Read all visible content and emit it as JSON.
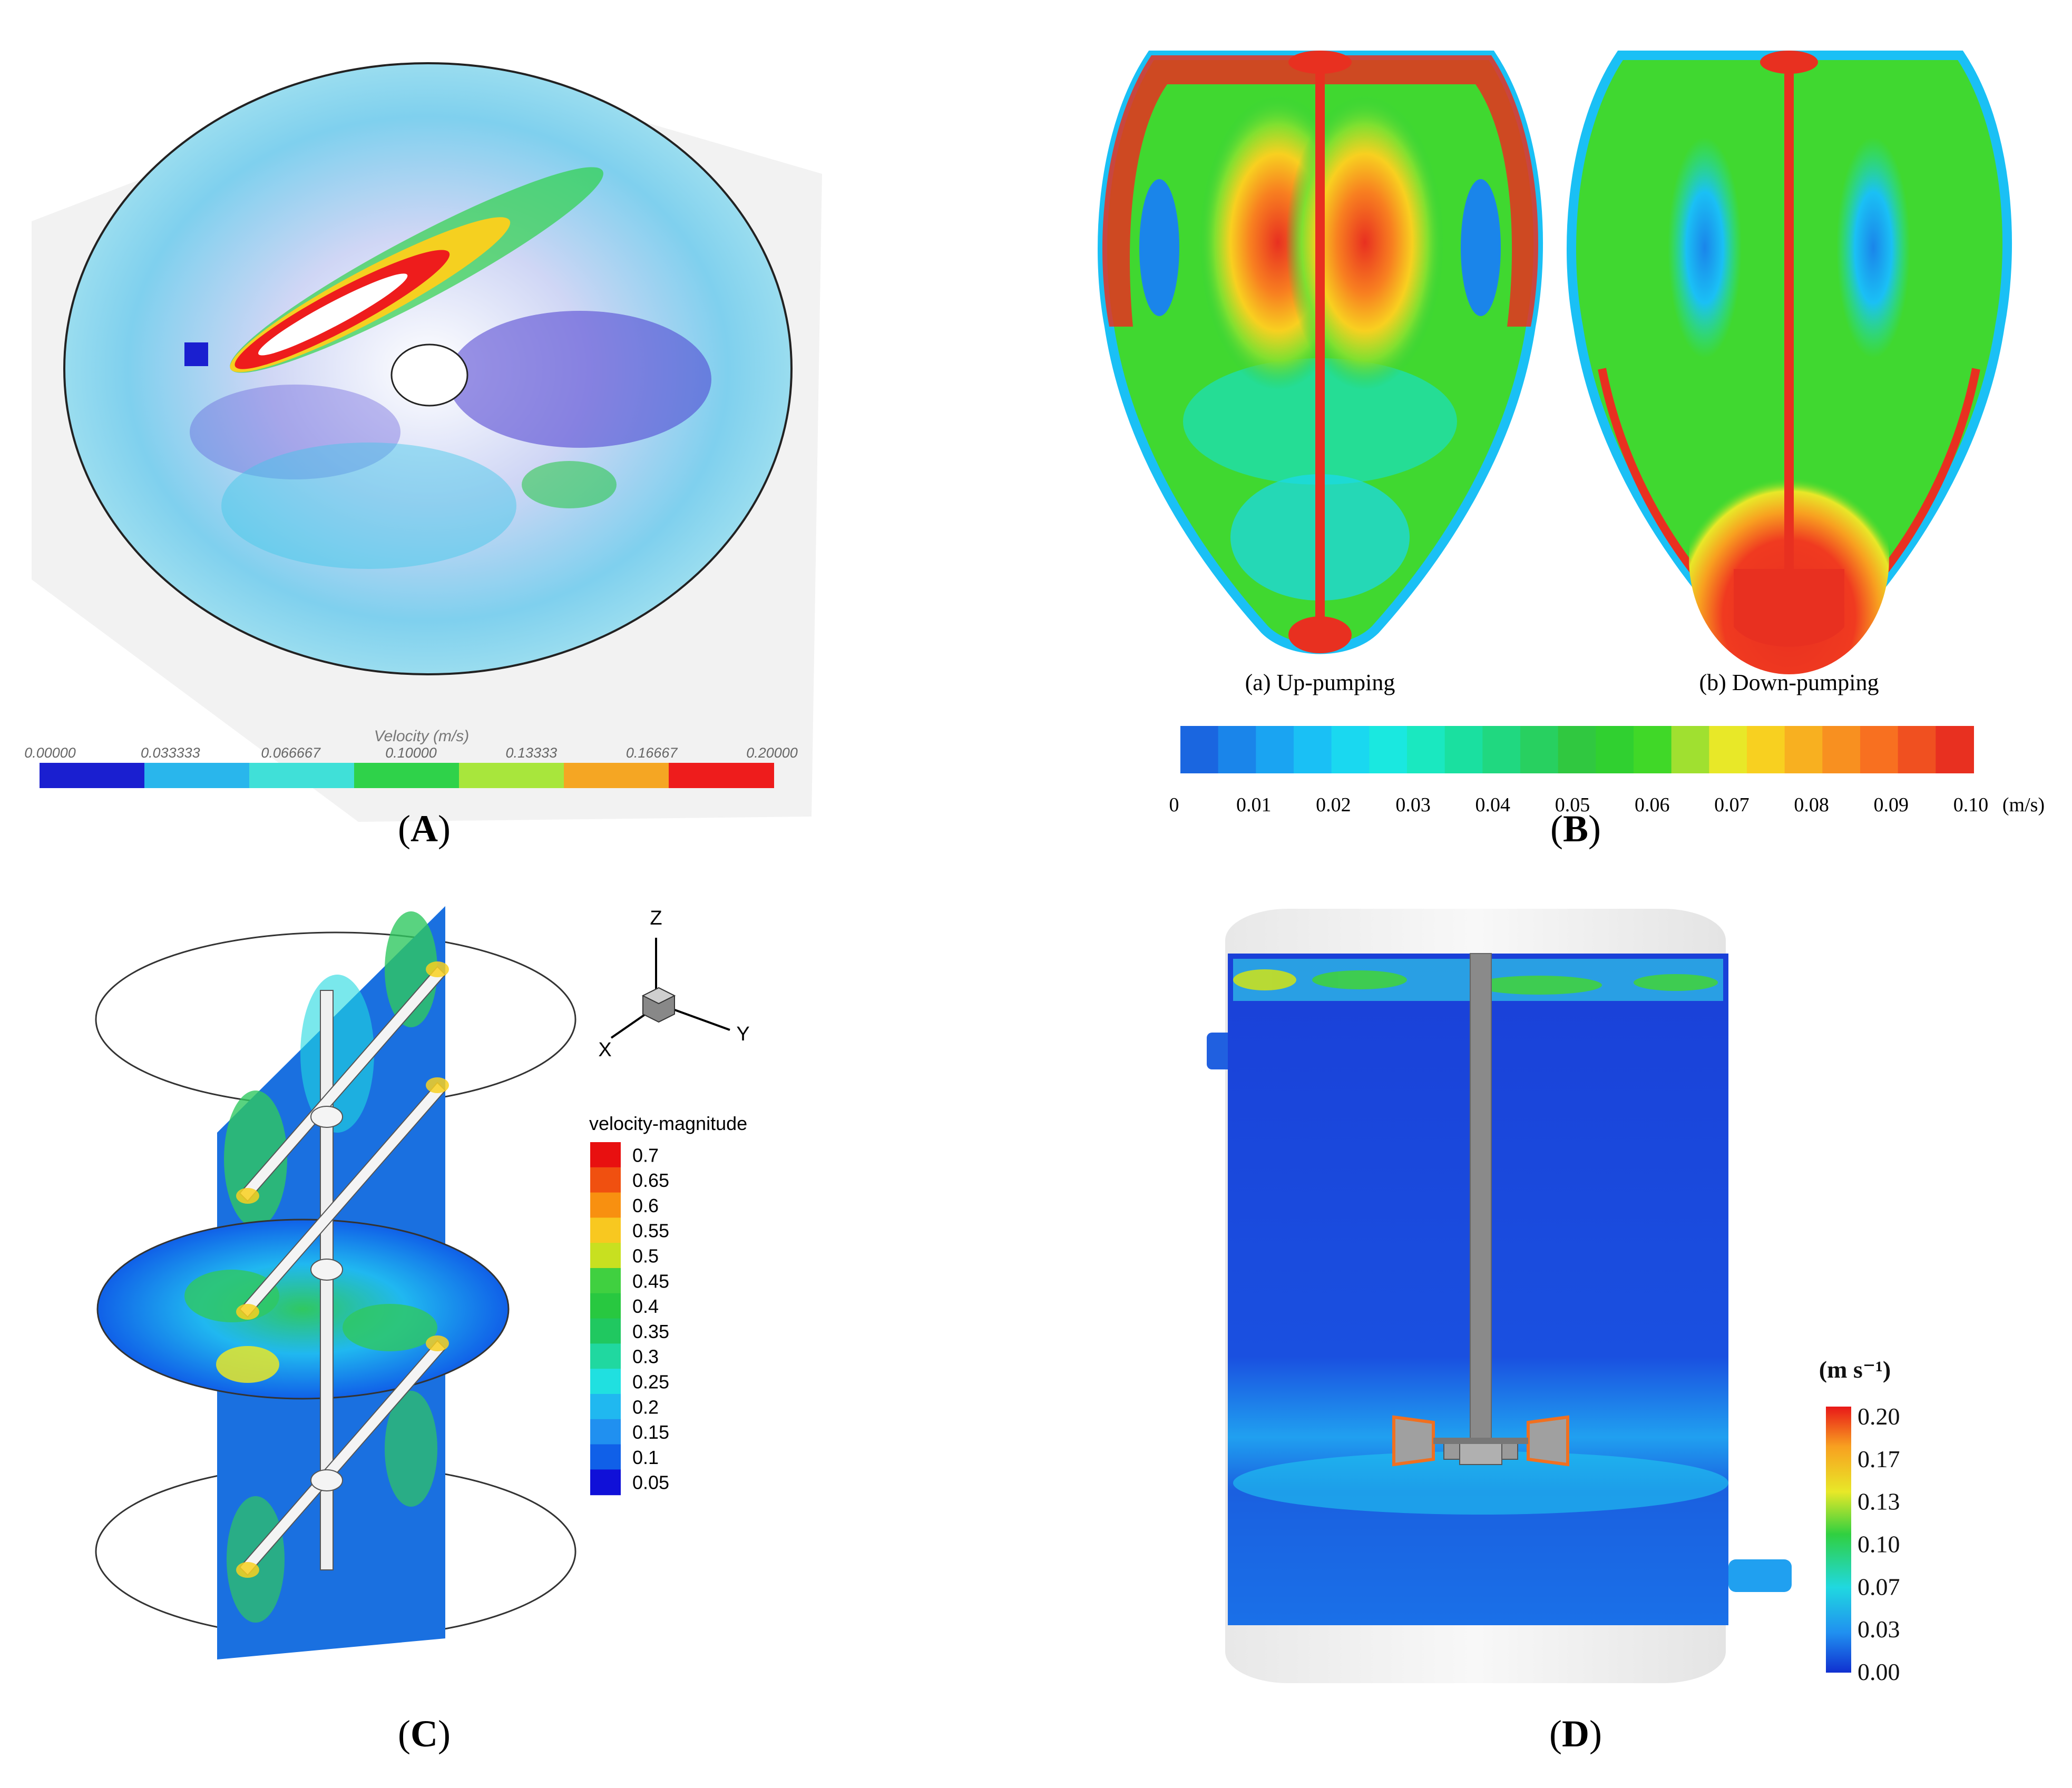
{
  "panels": {
    "A": {
      "label": "(A)",
      "label_letter": "A",
      "colorbar_title": "Velocity (m/s)",
      "ticks": [
        "0.00000",
        "0.033333",
        "0.066667",
        "0.10000",
        "0.13333",
        "0.16667",
        "0.20000"
      ],
      "colors": [
        "#1a1fd0",
        "#29b6ec",
        "#40e0d8",
        "#2fd24a",
        "#a8e63c",
        "#f5a623",
        "#ee1c1c"
      ]
    },
    "B": {
      "label": "(B)",
      "label_letter": "B",
      "caption_a": "(a) Up-pumping",
      "caption_b": "(b) Down-pumping",
      "ticks": [
        "0",
        "0.01",
        "0.02",
        "0.03",
        "0.04",
        "0.05",
        "0.06",
        "0.07",
        "0.08",
        "0.09",
        "0.10"
      ],
      "unit": "(m/s)",
      "colors": [
        "#1a66e0",
        "#1a85ea",
        "#1aa4f2",
        "#1ac0f5",
        "#1ad8f0",
        "#1ae8e0",
        "#1ae8c0",
        "#1ae0a0",
        "#20d880",
        "#28d060",
        "#30c840",
        "#30d030",
        "#40d828",
        "#a0e030",
        "#e8e828",
        "#f8d020",
        "#f8b020",
        "#f89020",
        "#f87020",
        "#f05020",
        "#e83020"
      ]
    },
    "C": {
      "label": "(C)",
      "label_letter": "C",
      "legend_title": "velocity-magnitude",
      "legend_values": [
        "0.7",
        "0.65",
        "0.6",
        "0.55",
        "0.5",
        "0.45",
        "0.4",
        "0.35",
        "0.3",
        "0.25",
        "0.2",
        "0.15",
        "0.1",
        "0.05"
      ],
      "legend_colors": [
        "#e81010",
        "#f05010",
        "#f89010",
        "#f8c820",
        "#c8e020",
        "#40d040",
        "#28c840",
        "#20c860",
        "#20d8a0",
        "#20e0e0",
        "#20b8f0",
        "#2090f0",
        "#1060e8",
        "#1010d8"
      ],
      "axis_z": "Z",
      "axis_y": "Y",
      "axis_x": "X"
    },
    "D": {
      "label": "(D)",
      "label_letter": "D",
      "unit_title": "(m s⁻¹)",
      "ticks": [
        "0.20",
        "0.17",
        "0.13",
        "0.10",
        "0.07",
        "0.03",
        "0.00"
      ]
    }
  }
}
